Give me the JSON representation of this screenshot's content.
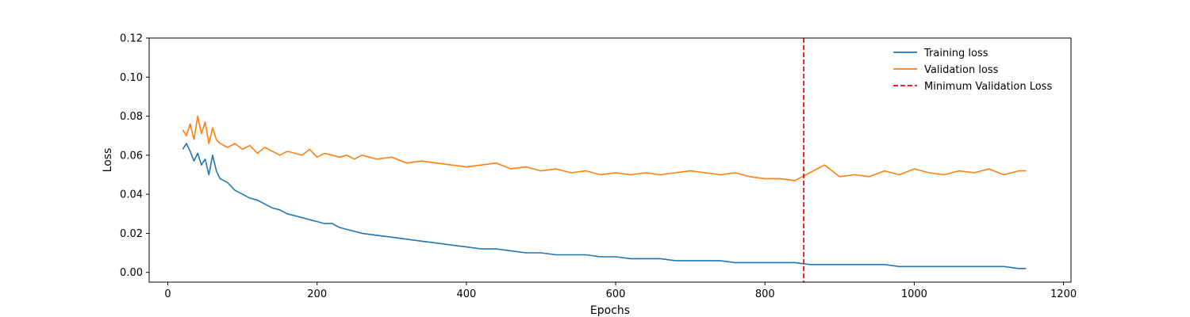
{
  "chart_data": {
    "type": "line",
    "xlabel": "Epochs",
    "ylabel": "Loss",
    "xlim": [
      -25,
      1210
    ],
    "ylim": [
      -0.005,
      0.12
    ],
    "xticks": [
      0,
      200,
      400,
      600,
      800,
      1000,
      1200
    ],
    "yticks": [
      0.0,
      0.02,
      0.04,
      0.06,
      0.08,
      0.1,
      0.12
    ],
    "xtick_labels": [
      "0",
      "200",
      "400",
      "600",
      "800",
      "1000",
      "1200"
    ],
    "ytick_labels": [
      "0.00",
      "0.02",
      "0.04",
      "0.06",
      "0.08",
      "0.10",
      "0.12"
    ],
    "grid": false,
    "legend_position": "top-right",
    "series": [
      {
        "name": "Training loss",
        "color": "#1f77b4",
        "x": [
          20,
          25,
          30,
          35,
          40,
          45,
          50,
          55,
          60,
          65,
          70,
          80,
          90,
          100,
          110,
          120,
          130,
          140,
          150,
          160,
          170,
          180,
          190,
          200,
          210,
          220,
          230,
          240,
          250,
          260,
          280,
          300,
          320,
          340,
          360,
          380,
          400,
          420,
          440,
          460,
          480,
          500,
          520,
          540,
          560,
          580,
          600,
          620,
          640,
          660,
          680,
          700,
          720,
          740,
          760,
          780,
          800,
          820,
          840,
          860,
          880,
          900,
          920,
          940,
          960,
          980,
          1000,
          1020,
          1040,
          1060,
          1080,
          1100,
          1120,
          1140,
          1150
        ],
        "values": [
          0.063,
          0.066,
          0.062,
          0.057,
          0.061,
          0.055,
          0.058,
          0.05,
          0.06,
          0.052,
          0.048,
          0.046,
          0.042,
          0.04,
          0.038,
          0.037,
          0.035,
          0.033,
          0.032,
          0.03,
          0.029,
          0.028,
          0.027,
          0.026,
          0.025,
          0.025,
          0.023,
          0.022,
          0.021,
          0.02,
          0.019,
          0.018,
          0.017,
          0.016,
          0.015,
          0.014,
          0.013,
          0.012,
          0.012,
          0.011,
          0.01,
          0.01,
          0.009,
          0.009,
          0.009,
          0.008,
          0.008,
          0.007,
          0.007,
          0.007,
          0.006,
          0.006,
          0.006,
          0.006,
          0.005,
          0.005,
          0.005,
          0.005,
          0.005,
          0.004,
          0.004,
          0.004,
          0.004,
          0.004,
          0.004,
          0.003,
          0.003,
          0.003,
          0.003,
          0.003,
          0.003,
          0.003,
          0.003,
          0.002,
          0.002
        ]
      },
      {
        "name": "Validation loss",
        "color": "#ff7f0e",
        "x": [
          20,
          25,
          30,
          35,
          40,
          45,
          50,
          55,
          60,
          65,
          70,
          80,
          90,
          100,
          110,
          120,
          130,
          140,
          150,
          160,
          170,
          180,
          190,
          200,
          210,
          220,
          230,
          240,
          250,
          260,
          280,
          300,
          320,
          340,
          360,
          380,
          400,
          420,
          440,
          460,
          480,
          500,
          520,
          540,
          560,
          580,
          600,
          620,
          640,
          660,
          680,
          700,
          720,
          740,
          760,
          780,
          800,
          820,
          840,
          860,
          880,
          900,
          920,
          940,
          960,
          980,
          1000,
          1020,
          1040,
          1060,
          1080,
          1100,
          1120,
          1140,
          1150
        ],
        "values": [
          0.073,
          0.07,
          0.076,
          0.068,
          0.08,
          0.071,
          0.077,
          0.066,
          0.074,
          0.068,
          0.066,
          0.064,
          0.066,
          0.063,
          0.065,
          0.061,
          0.064,
          0.062,
          0.06,
          0.062,
          0.061,
          0.06,
          0.063,
          0.059,
          0.061,
          0.06,
          0.059,
          0.06,
          0.058,
          0.06,
          0.058,
          0.059,
          0.056,
          0.057,
          0.056,
          0.055,
          0.054,
          0.055,
          0.056,
          0.053,
          0.054,
          0.052,
          0.053,
          0.051,
          0.052,
          0.05,
          0.051,
          0.05,
          0.051,
          0.05,
          0.051,
          0.052,
          0.051,
          0.05,
          0.051,
          0.049,
          0.048,
          0.048,
          0.047,
          0.051,
          0.055,
          0.049,
          0.05,
          0.049,
          0.052,
          0.05,
          0.053,
          0.051,
          0.05,
          0.052,
          0.051,
          0.053,
          0.05,
          0.052,
          0.052
        ]
      }
    ],
    "reference_lines": [
      {
        "name": "Minimum Validation Loss",
        "orientation": "vertical",
        "x": 852,
        "color": "#ff0000",
        "style": "dashed"
      }
    ]
  }
}
